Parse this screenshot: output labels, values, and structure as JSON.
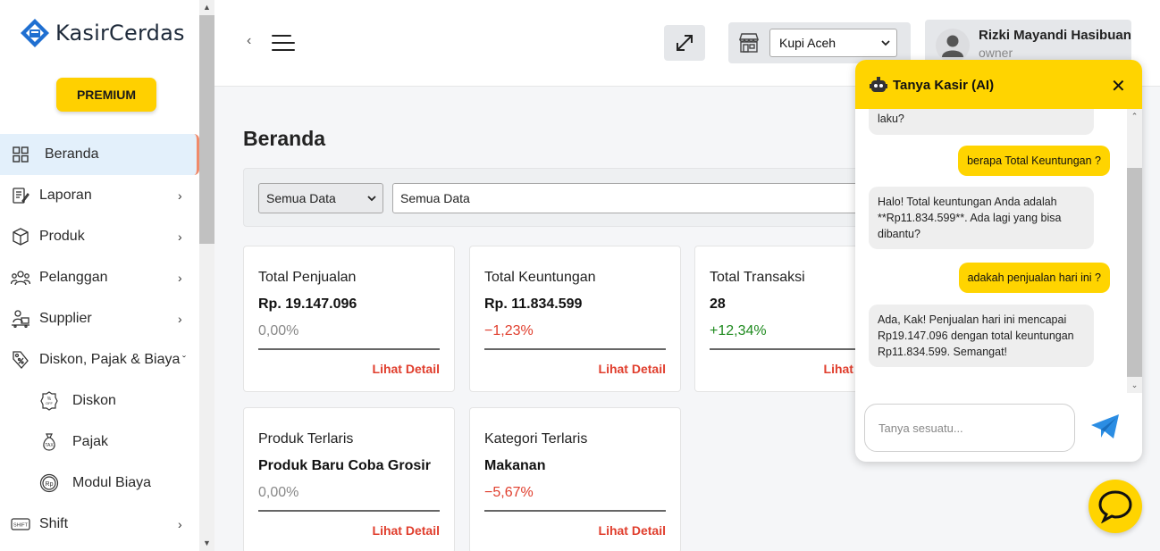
{
  "brand": {
    "name": "KasirCerdas",
    "premium_label": "PREMIUM"
  },
  "sidebar": {
    "items": [
      {
        "label": "Beranda",
        "icon": "grid-icon",
        "active": true
      },
      {
        "label": "Laporan",
        "icon": "report-icon",
        "chevron": "›"
      },
      {
        "label": "Produk",
        "icon": "box-icon",
        "chevron": "›"
      },
      {
        "label": "Pelanggan",
        "icon": "users-icon",
        "chevron": "›"
      },
      {
        "label": "Supplier",
        "icon": "supplier-icon",
        "chevron": "›"
      },
      {
        "label": "Diskon, Pajak & Biaya",
        "icon": "discount-tag-icon",
        "chevron": "ˇ",
        "expanded": true
      },
      {
        "label": "Diskon",
        "icon": "discount-badge-icon",
        "sub": true
      },
      {
        "label": "Pajak",
        "icon": "tax-icon",
        "sub": true
      },
      {
        "label": "Modul Biaya",
        "icon": "rupiah-coin-icon",
        "sub": true
      },
      {
        "label": "Shift",
        "icon": "shift-icon",
        "chevron": "›"
      }
    ]
  },
  "header": {
    "back": "‹",
    "store": {
      "selected": "Kupi Aceh"
    },
    "user": {
      "name": "Rizki Mayandi Hasibuan",
      "role": "owner"
    }
  },
  "main": {
    "title": "Beranda",
    "filters": {
      "scope": "Semua Data",
      "detail": "Semua Data"
    },
    "cards": [
      {
        "title": "Total Penjualan",
        "value": "Rp. 19.147.096",
        "change": "0,00%",
        "trend": "neutral",
        "link": "Lihat Detail"
      },
      {
        "title": "Total Keuntungan",
        "value": "Rp. 11.834.599",
        "change": "−1,23%",
        "trend": "down",
        "link": "Lihat Detail"
      },
      {
        "title": "Total Transaksi",
        "value": "28",
        "change": "+12,34%",
        "trend": "up",
        "link": "Lihat Detail"
      },
      {
        "title": "Produk Terlaris",
        "value": "Produk Baru Coba Grosir",
        "change": "0,00%",
        "trend": "neutral",
        "link": "Lihat Detail"
      },
      {
        "title": "Kategori Terlaris",
        "value": "Makanan",
        "change": "−5,67%",
        "trend": "down",
        "link": "Lihat Detail"
      }
    ]
  },
  "chat": {
    "title": "Tanya Kasir (AI)",
    "close": "✕",
    "messages": [
      {
        "from": "bot",
        "text": "laku?"
      },
      {
        "from": "user",
        "text": "berapa Total Keuntungan ?"
      },
      {
        "from": "bot",
        "text": "Halo! Total keuntungan Anda adalah **Rp11.834.599**. Ada lagi yang bisa dibantu?"
      },
      {
        "from": "user",
        "text": "adakah penjualan hari ini ?"
      },
      {
        "from": "bot",
        "text": "Ada, Kak! Penjualan hari ini mencapai Rp19.147.096 dengan total keuntungan Rp11.834.599. Semangat!"
      }
    ],
    "input_placeholder": "Tanya sesuatu..."
  },
  "colors": {
    "accent": "#ffd400",
    "negative": "#e03e2d",
    "positive": "#1e8a1e",
    "active_bg": "#e3f0fb"
  }
}
